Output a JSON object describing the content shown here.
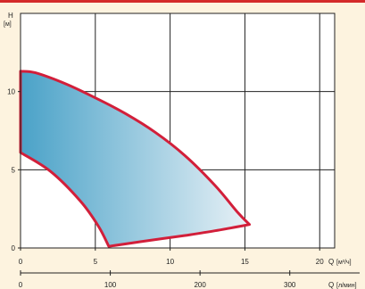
{
  "chart_data": {
    "type": "area",
    "title": "",
    "y_axis": {
      "label": "H",
      "unit": "[м]",
      "range": [
        0,
        15
      ],
      "ticks": [
        "0",
        "5",
        "10"
      ],
      "tick_values": [
        0,
        5,
        10
      ]
    },
    "x_axis_primary": {
      "label": "Q",
      "unit": "[м³/ч]",
      "range": [
        0,
        21
      ],
      "ticks": [
        "0",
        "5",
        "10",
        "15",
        "20"
      ],
      "tick_values": [
        0,
        5,
        10,
        15,
        20
      ]
    },
    "x_axis_secondary": {
      "label": "Q",
      "unit": "[л/мин]",
      "range": [
        0,
        350
      ],
      "ticks": [
        "0",
        "100",
        "200",
        "300"
      ],
      "tick_values": [
        0,
        100,
        200,
        300
      ]
    },
    "grid": true,
    "series": [
      {
        "upper_curve": [
          {
            "x": 0,
            "y": 11.3
          },
          {
            "x": 1,
            "y": 11.2
          },
          {
            "x": 3,
            "y": 10.5
          },
          {
            "x": 5,
            "y": 9.6
          },
          {
            "x": 7,
            "y": 8.6
          },
          {
            "x": 9,
            "y": 7.4
          },
          {
            "x": 11,
            "y": 5.9
          },
          {
            "x": 13,
            "y": 4.0
          },
          {
            "x": 14.5,
            "y": 2.3
          },
          {
            "x": 15.3,
            "y": 1.5
          }
        ],
        "lower_curve": [
          {
            "x": 0,
            "y": 6.1
          },
          {
            "x": 2,
            "y": 4.9
          },
          {
            "x": 4,
            "y": 3.0
          },
          {
            "x": 5.2,
            "y": 1.4
          },
          {
            "x": 5.9,
            "y": 0.1
          },
          {
            "x": 8,
            "y": 0.4
          },
          {
            "x": 11,
            "y": 0.8
          },
          {
            "x": 13,
            "y": 1.1
          },
          {
            "x": 15.3,
            "y": 1.5
          }
        ]
      }
    ],
    "colors": {
      "outline": "#d21f3a",
      "fill_start": "#4aa2c8",
      "fill_end": "#e8f1f6",
      "grid": "#222222",
      "background": "#fdf3df",
      "accent_bar": "#d42a2a"
    }
  }
}
